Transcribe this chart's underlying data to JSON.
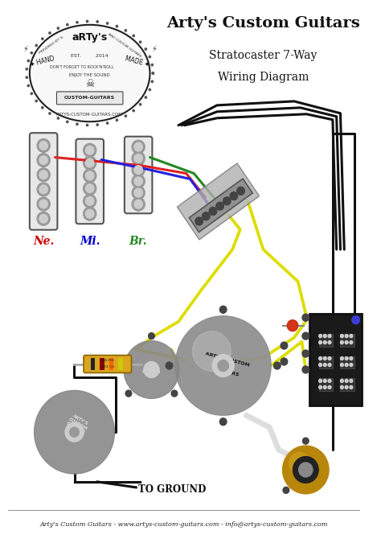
{
  "title_line1": "Arty's Custom Guitars",
  "title_line2": "Stratocaster 7-Way",
  "title_line3": "Wiring Diagram",
  "footer_text": "Arty's Custom Guitars - www.artys-custom-guitars.com - info@artys-custom-guitars.com",
  "label_ne": "Ne.",
  "label_mi": "Mi.",
  "label_br": "Br.",
  "label_ground": "TO GROUND",
  "color_ne": "#cc0000",
  "color_mi": "#0000cc",
  "color_br": "#228822",
  "bg_color": "#ffffff",
  "title_color": "#111111",
  "footer_color": "#222222",
  "fig_width": 4.74,
  "fig_height": 6.7,
  "dpi": 100,
  "wire_black": "#111111",
  "wire_red": "#dd2222",
  "wire_blue": "#2222dd",
  "wire_green": "#228822",
  "wire_yellow": "#dddd00",
  "wire_white": "#dddddd"
}
